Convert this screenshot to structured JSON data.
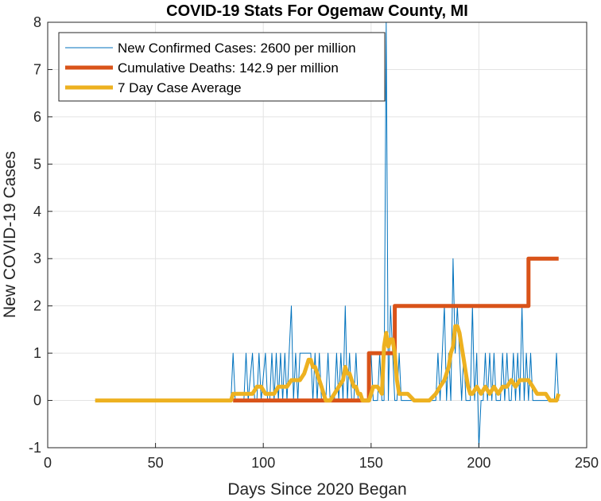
{
  "chart_data": {
    "type": "line",
    "title": "COVID-19 Stats For Ogemaw County, MI",
    "xlabel": "Days Since 2020 Began",
    "ylabel": "New COVID-19 Cases",
    "xlim": [
      0,
      250
    ],
    "ylim": [
      -1,
      8
    ],
    "xticks": [
      0,
      50,
      100,
      150,
      200,
      250
    ],
    "yticks": [
      -1,
      0,
      1,
      2,
      3,
      4,
      5,
      6,
      7,
      8
    ],
    "grid": true,
    "legend_position": "top-left",
    "series": [
      {
        "name": "New Confirmed Cases: 2600 per million",
        "color": "#0072BD",
        "width": "thin",
        "x": [
          22,
          85,
          86,
          87,
          91,
          92,
          93,
          95,
          96,
          97,
          98,
          99,
          101,
          102,
          103,
          104,
          105,
          106,
          107,
          108,
          109,
          110,
          111,
          112,
          113,
          114,
          115,
          116,
          117,
          118,
          119,
          120,
          121,
          122,
          123,
          124,
          125,
          126,
          127,
          128,
          129,
          130,
          131,
          132,
          133,
          134,
          135,
          136,
          137,
          138,
          139,
          140,
          141,
          142,
          143,
          144,
          145,
          146,
          147,
          148,
          149,
          150,
          151,
          152,
          153,
          154,
          155,
          156,
          157,
          158,
          159,
          160,
          161,
          162,
          163,
          164,
          165,
          166,
          167,
          168,
          169,
          170,
          171,
          172,
          173,
          174,
          175,
          176,
          177,
          178,
          179,
          180,
          181,
          182,
          183,
          184,
          185,
          186,
          187,
          188,
          189,
          190,
          191,
          192,
          193,
          194,
          195,
          196,
          197,
          198,
          199,
          200,
          201,
          202,
          203,
          204,
          205,
          206,
          207,
          208,
          209,
          210,
          211,
          212,
          213,
          214,
          215,
          216,
          217,
          218,
          219,
          220,
          221,
          222,
          223,
          224,
          225,
          226,
          227,
          228,
          229,
          230,
          231,
          232,
          233,
          234,
          235,
          236,
          237
        ],
        "y": [
          0,
          0,
          1,
          0,
          0,
          1,
          0,
          1,
          0,
          0,
          1,
          0,
          1,
          0,
          0,
          1,
          0,
          1,
          0,
          1,
          0,
          1,
          0,
          1,
          2,
          0,
          1,
          0,
          1,
          1,
          1,
          1,
          1,
          1,
          0,
          1,
          0,
          1,
          0,
          0,
          0,
          1,
          0,
          0,
          0,
          1,
          0,
          1,
          0,
          2,
          0,
          1,
          0,
          0,
          1,
          0,
          0,
          0,
          0,
          0,
          0,
          1,
          0,
          0,
          0,
          1,
          0,
          0,
          8,
          0,
          2,
          1,
          0,
          0,
          1,
          0,
          0,
          0,
          0,
          0,
          0,
          0,
          0,
          0,
          0,
          0,
          0,
          0,
          0,
          0,
          0,
          0,
          1,
          0,
          1,
          2,
          0,
          1,
          0,
          3,
          1,
          2,
          1,
          0,
          1,
          0,
          0,
          0,
          2,
          0,
          1,
          -1,
          0,
          0,
          1,
          0,
          1,
          0,
          1,
          0,
          0,
          0,
          1,
          0,
          1,
          0,
          0,
          1,
          0,
          1,
          0,
          2,
          0,
          1,
          0,
          1,
          0,
          0,
          0,
          0,
          0,
          0,
          0,
          0,
          0,
          0,
          0,
          1,
          0
        ]
      },
      {
        "name": "Cumulative Deaths: 142.9 per million",
        "color": "#D95319",
        "width": "thick",
        "x": [
          86,
          149,
          149,
          161,
          161,
          223,
          223,
          237
        ],
        "y": [
          0,
          0,
          1,
          1,
          2,
          2,
          3,
          3
        ]
      },
      {
        "name": "7 Day Case Average",
        "color": "#EDB120",
        "width": "thick",
        "x": [
          22,
          85,
          86,
          91,
          93,
          95,
          97,
          99,
          101,
          103,
          105,
          107,
          109,
          111,
          113,
          115,
          117,
          119,
          120,
          121,
          122,
          123,
          124,
          125,
          126,
          127,
          128,
          129,
          131,
          133,
          135,
          137,
          138,
          139,
          140,
          141,
          142,
          143,
          144,
          145,
          146,
          147,
          148,
          149,
          150,
          151,
          153,
          155,
          156,
          157,
          158,
          159,
          160,
          161,
          162,
          163,
          164,
          165,
          167,
          170,
          172,
          175,
          177,
          180,
          182,
          184,
          186,
          187,
          188,
          189,
          190,
          191,
          192,
          193,
          194,
          195,
          196,
          197,
          199,
          201,
          203,
          205,
          207,
          209,
          211,
          213,
          215,
          217,
          219,
          221,
          223,
          225,
          227,
          229,
          231,
          233,
          235,
          236,
          237
        ],
        "y": [
          0,
          0,
          0.14,
          0.14,
          0.14,
          0.14,
          0.29,
          0.29,
          0.14,
          0.14,
          0.14,
          0.29,
          0.29,
          0.29,
          0.43,
          0.43,
          0.43,
          0.57,
          0.71,
          0.86,
          0.86,
          0.71,
          0.71,
          0.57,
          0.43,
          0.29,
          0.14,
          0,
          0,
          0.14,
          0.29,
          0.43,
          0.71,
          0.57,
          0.57,
          0.43,
          0.29,
          0.29,
          0.14,
          0.14,
          0,
          0,
          0,
          0,
          0.14,
          0.29,
          0.29,
          0.14,
          1.14,
          1.43,
          1.14,
          1.29,
          1.29,
          1,
          0.43,
          0.14,
          0.14,
          0.14,
          0.14,
          0,
          0,
          0,
          0,
          0.14,
          0.29,
          0.43,
          0.71,
          1,
          1.14,
          1.57,
          1.57,
          1.43,
          1.14,
          0.86,
          0.57,
          0.29,
          0.14,
          0.14,
          0.29,
          0.14,
          0.29,
          0.14,
          0.29,
          0.14,
          0.29,
          0.29,
          0.43,
          0.29,
          0.43,
          0.43,
          0.43,
          0.29,
          0.14,
          0.14,
          0.14,
          0,
          0,
          0,
          0.14
        ]
      }
    ]
  }
}
